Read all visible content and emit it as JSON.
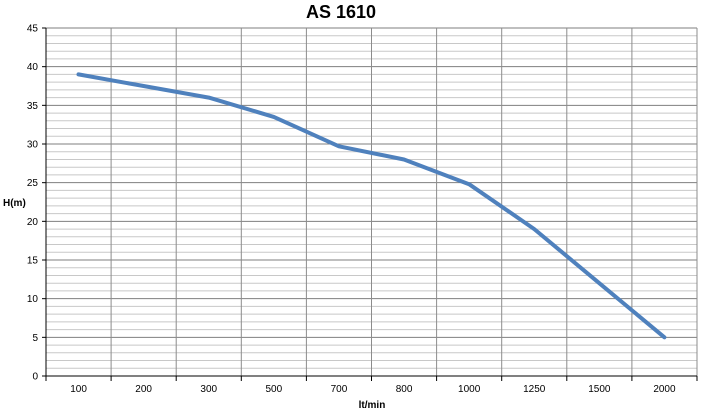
{
  "chart_data": {
    "type": "line",
    "title": "AS 1610",
    "xlabel": "lt/min",
    "ylabel": "H(m)",
    "categories": [
      "100",
      "200",
      "300",
      "500",
      "700",
      "800",
      "1000",
      "1250",
      "1500",
      "2000"
    ],
    "series": [
      {
        "values": [
          39,
          37.5,
          36,
          33.5,
          29.7,
          28,
          24.8,
          19,
          12,
          5
        ],
        "color": "#4F81BD"
      }
    ],
    "ylim": [
      0,
      45
    ],
    "yticks": [
      0,
      5,
      10,
      15,
      20,
      25,
      30,
      35,
      40,
      45
    ],
    "y_minor_step": 1,
    "grid": true,
    "legend": "none"
  }
}
